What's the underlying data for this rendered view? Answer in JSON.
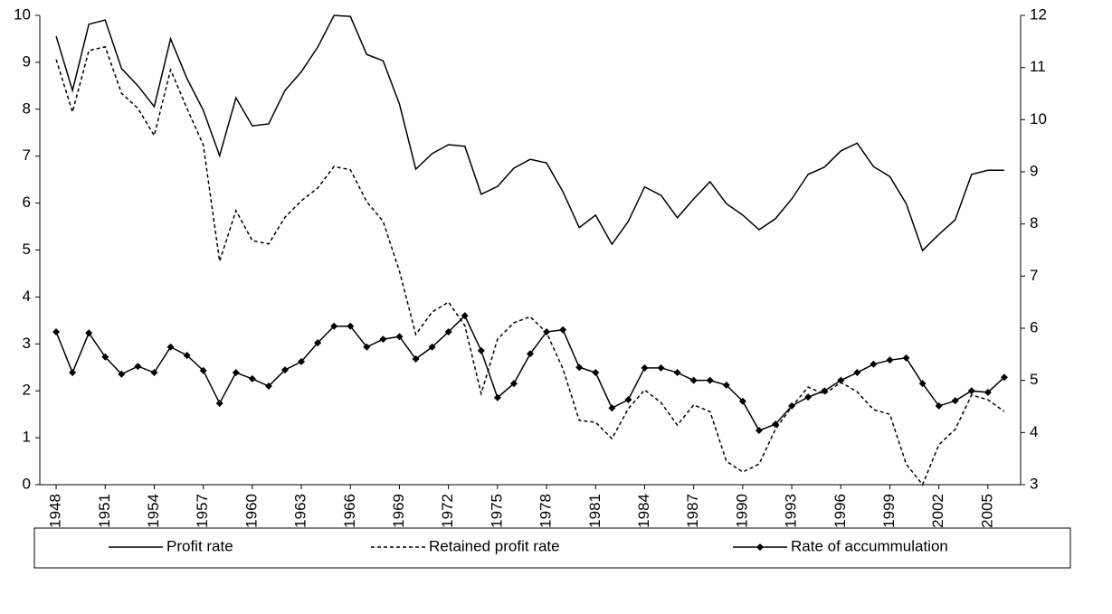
{
  "chart_data": {
    "type": "line",
    "x": [
      1948,
      1949,
      1950,
      1951,
      1952,
      1953,
      1954,
      1955,
      1956,
      1957,
      1958,
      1959,
      1960,
      1961,
      1962,
      1963,
      1964,
      1965,
      1966,
      1967,
      1968,
      1969,
      1970,
      1971,
      1972,
      1973,
      1974,
      1975,
      1976,
      1977,
      1978,
      1979,
      1980,
      1981,
      1982,
      1983,
      1984,
      1985,
      1986,
      1987,
      1988,
      1989,
      1990,
      1991,
      1992,
      1993,
      1994,
      1995,
      1996,
      1997,
      1998,
      1999,
      2000,
      2001,
      2002,
      2003,
      2004,
      2005,
      2006
    ],
    "xlim": [
      1947,
      2007
    ],
    "xticks": [
      1948,
      1951,
      1954,
      1957,
      1960,
      1963,
      1966,
      1969,
      1972,
      1975,
      1978,
      1981,
      1984,
      1987,
      1990,
      1993,
      1996,
      1999,
      2002,
      2005
    ],
    "ylim": [
      0,
      10
    ],
    "yticks": [
      0,
      1,
      2,
      3,
      4,
      5,
      6,
      7,
      8,
      9,
      10
    ],
    "y2lim": [
      3,
      12
    ],
    "y2ticks": [
      3,
      4,
      5,
      6,
      7,
      8,
      9,
      10,
      11,
      12
    ],
    "series": [
      {
        "name": "Profit rate",
        "color": "#000000",
        "dash": "solid",
        "marker": "none",
        "axis": "y2",
        "values": [
          11.6,
          10.56,
          11.83,
          11.91,
          10.98,
          10.65,
          10.25,
          11.55,
          10.79,
          10.18,
          9.31,
          10.42,
          9.88,
          9.92,
          10.56,
          10.92,
          11.39,
          12.0,
          11.98,
          11.25,
          11.13,
          10.3,
          9.05,
          9.35,
          9.52,
          9.49,
          8.57,
          8.72,
          9.07,
          9.24,
          9.17,
          8.62,
          7.93,
          8.17,
          7.61,
          8.05,
          8.71,
          8.55,
          8.12,
          8.48,
          8.81,
          8.39,
          8.17,
          7.89,
          8.1,
          8.48,
          8.95,
          9.09,
          9.4,
          9.55,
          9.1,
          8.91,
          8.39,
          7.49,
          7.8,
          8.08,
          8.95,
          9.03,
          9.03
        ]
      },
      {
        "name": "Retained profit rate",
        "color": "#000000",
        "dash": "dotted",
        "marker": "none",
        "axis": "y",
        "values": [
          9.06,
          7.94,
          9.25,
          9.33,
          8.34,
          8.02,
          7.44,
          8.84,
          8.02,
          7.24,
          4.76,
          5.84,
          5.2,
          5.13,
          5.7,
          6.05,
          6.32,
          6.78,
          6.71,
          6.03,
          5.61,
          4.55,
          3.2,
          3.68,
          3.89,
          3.39,
          1.94,
          3.1,
          3.45,
          3.58,
          3.24,
          2.47,
          1.37,
          1.33,
          0.98,
          1.62,
          2.02,
          1.75,
          1.27,
          1.7,
          1.56,
          0.5,
          0.27,
          0.44,
          1.18,
          1.66,
          2.08,
          1.93,
          2.18,
          1.98,
          1.6,
          1.5,
          0.44,
          0.0,
          0.85,
          1.18,
          1.91,
          1.81,
          1.56
        ]
      },
      {
        "name": "Rate of accummulation",
        "color": "#000000",
        "dash": "solid",
        "marker": "diamond",
        "axis": "y2",
        "values": [
          5.93,
          5.15,
          5.91,
          5.45,
          5.12,
          5.27,
          5.15,
          5.64,
          5.48,
          5.19,
          4.56,
          5.15,
          5.03,
          4.89,
          5.2,
          5.36,
          5.72,
          6.04,
          6.04,
          5.64,
          5.79,
          5.84,
          5.41,
          5.64,
          5.93,
          6.24,
          5.57,
          4.67,
          4.94,
          5.51,
          5.93,
          5.97,
          5.25,
          5.15,
          4.47,
          4.63,
          5.24,
          5.24,
          5.15,
          5.0,
          5.0,
          4.91,
          4.6,
          4.04,
          4.16,
          4.51,
          4.68,
          4.8,
          5.0,
          5.15,
          5.31,
          5.39,
          5.43,
          4.94,
          4.51,
          4.61,
          4.8,
          4.77,
          5.06
        ]
      }
    ]
  }
}
